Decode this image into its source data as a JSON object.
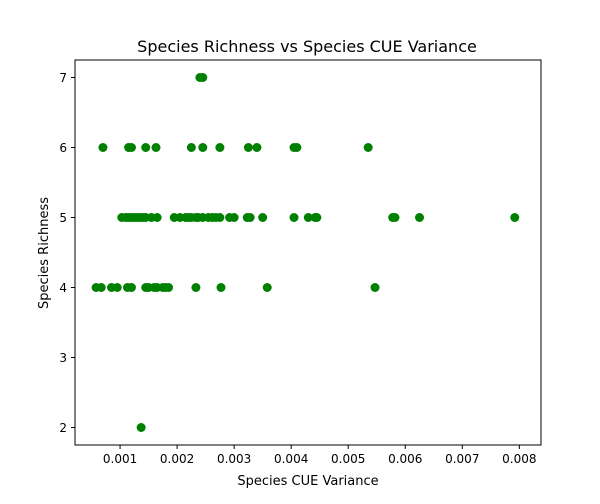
{
  "chart_data": {
    "type": "scatter",
    "title": "Species Richness vs Species CUE Variance",
    "xlabel": "Species CUE Variance",
    "ylabel": "Species Richness",
    "xlim": [
      0.00021,
      0.00838
    ],
    "ylim": [
      1.75,
      7.25
    ],
    "xticks": [
      0.001,
      0.002,
      0.003,
      0.004,
      0.005,
      0.006,
      0.007,
      0.008
    ],
    "xtick_labels": [
      "0.001",
      "0.002",
      "0.003",
      "0.004",
      "0.005",
      "0.006",
      "0.007",
      "0.008"
    ],
    "yticks": [
      2,
      3,
      4,
      5,
      6,
      7
    ],
    "ytick_labels": [
      "2",
      "3",
      "4",
      "5",
      "6",
      "7"
    ],
    "grid": false,
    "marker_color": "#008000",
    "series": [
      {
        "points": [
          [
            0.0024,
            7
          ],
          [
            0.00245,
            7
          ],
          [
            0.0007,
            6
          ],
          [
            0.00115,
            6
          ],
          [
            0.0012,
            6
          ],
          [
            0.00145,
            6
          ],
          [
            0.00163,
            6
          ],
          [
            0.00225,
            6
          ],
          [
            0.00245,
            6
          ],
          [
            0.00275,
            6
          ],
          [
            0.00325,
            6
          ],
          [
            0.0034,
            6
          ],
          [
            0.00405,
            6
          ],
          [
            0.0041,
            6
          ],
          [
            0.00535,
            6
          ],
          [
            0.00103,
            5
          ],
          [
            0.0011,
            5
          ],
          [
            0.00115,
            5
          ],
          [
            0.0012,
            5
          ],
          [
            0.00125,
            5
          ],
          [
            0.0013,
            5
          ],
          [
            0.00135,
            5
          ],
          [
            0.0014,
            5
          ],
          [
            0.00145,
            5
          ],
          [
            0.00155,
            5
          ],
          [
            0.00165,
            5
          ],
          [
            0.00195,
            5
          ],
          [
            0.00205,
            5
          ],
          [
            0.00215,
            5
          ],
          [
            0.0022,
            5
          ],
          [
            0.00225,
            5
          ],
          [
            0.00233,
            5
          ],
          [
            0.00237,
            5
          ],
          [
            0.00245,
            5
          ],
          [
            0.00255,
            5
          ],
          [
            0.00262,
            5
          ],
          [
            0.00268,
            5
          ],
          [
            0.00275,
            5
          ],
          [
            0.00292,
            5
          ],
          [
            0.003,
            5
          ],
          [
            0.00323,
            5
          ],
          [
            0.00328,
            5
          ],
          [
            0.0035,
            5
          ],
          [
            0.00405,
            5
          ],
          [
            0.0043,
            5
          ],
          [
            0.00442,
            5
          ],
          [
            0.00445,
            5
          ],
          [
            0.00578,
            5
          ],
          [
            0.00582,
            5
          ],
          [
            0.00625,
            5
          ],
          [
            0.00792,
            5
          ],
          [
            0.00058,
            4
          ],
          [
            0.00067,
            4
          ],
          [
            0.00085,
            4
          ],
          [
            0.00095,
            4
          ],
          [
            0.00113,
            4
          ],
          [
            0.0012,
            4
          ],
          [
            0.00145,
            4
          ],
          [
            0.0015,
            4
          ],
          [
            0.0016,
            4
          ],
          [
            0.00165,
            4
          ],
          [
            0.00175,
            4
          ],
          [
            0.0018,
            4
          ],
          [
            0.00185,
            4
          ],
          [
            0.00233,
            4
          ],
          [
            0.00277,
            4
          ],
          [
            0.00358,
            4
          ],
          [
            0.00547,
            4
          ],
          [
            0.00137,
            2
          ]
        ]
      }
    ]
  }
}
